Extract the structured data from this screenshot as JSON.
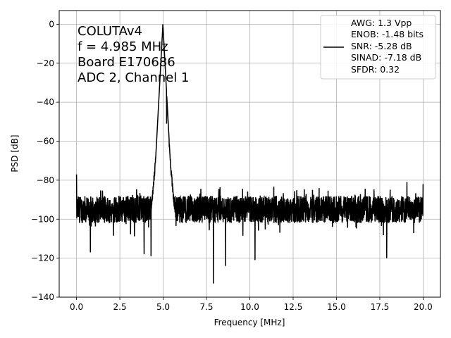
{
  "chart_data": {
    "type": "line",
    "title": "",
    "xlabel": "Frequency [MHz]",
    "ylabel": "PSD [dB]",
    "xlim": [
      -1.0,
      21.0
    ],
    "ylim": [
      -140,
      7
    ],
    "x_ticks": [
      0.0,
      2.5,
      5.0,
      7.5,
      10.0,
      12.5,
      15.0,
      17.5,
      20.0
    ],
    "x_tick_labels": [
      "0.0",
      "2.5",
      "5.0",
      "7.5",
      "10.0",
      "12.5",
      "15.0",
      "17.5",
      "20.0"
    ],
    "y_ticks": [
      0,
      -20,
      -40,
      -60,
      -80,
      -100,
      -120,
      -140
    ],
    "y_tick_labels": [
      "0",
      "−20",
      "−40",
      "−60",
      "−80",
      "−100",
      "−120",
      "−140"
    ],
    "grid": true,
    "line_color": "#000000",
    "annotation_lines": [
      "COLUTAv4",
      "f = 4.985 MHz",
      "Board E170686",
      "ADC 2, Channel 1"
    ],
    "legend": {
      "placement": "top-right",
      "lines": [
        "AWG: 1.3 Vpp",
        "ENOB: -1.48 bits",
        "SNR: -5.28 dB",
        "SINAD: -7.18 dB",
        "SFDR: 0.32"
      ]
    },
    "series": [
      {
        "signal_frequency_mhz": 4.985,
        "peak_db": 0,
        "noise_floor_db_range": [
          -105,
          -85
        ],
        "notable_points": [
          {
            "x": 0.0,
            "y": -77
          },
          {
            "x": 0.8,
            "y": -117
          },
          {
            "x": 3.9,
            "y": -118
          },
          {
            "x": 4.3,
            "y": -119
          },
          {
            "x": 4.985,
            "y": 0
          },
          {
            "x": 5.2,
            "y": -51
          },
          {
            "x": 5.35,
            "y": -63
          },
          {
            "x": 7.9,
            "y": -133
          },
          {
            "x": 8.6,
            "y": -124
          },
          {
            "x": 10.3,
            "y": -121
          },
          {
            "x": 17.9,
            "y": -120
          },
          {
            "x": 20.0,
            "y": -82
          }
        ]
      }
    ]
  }
}
